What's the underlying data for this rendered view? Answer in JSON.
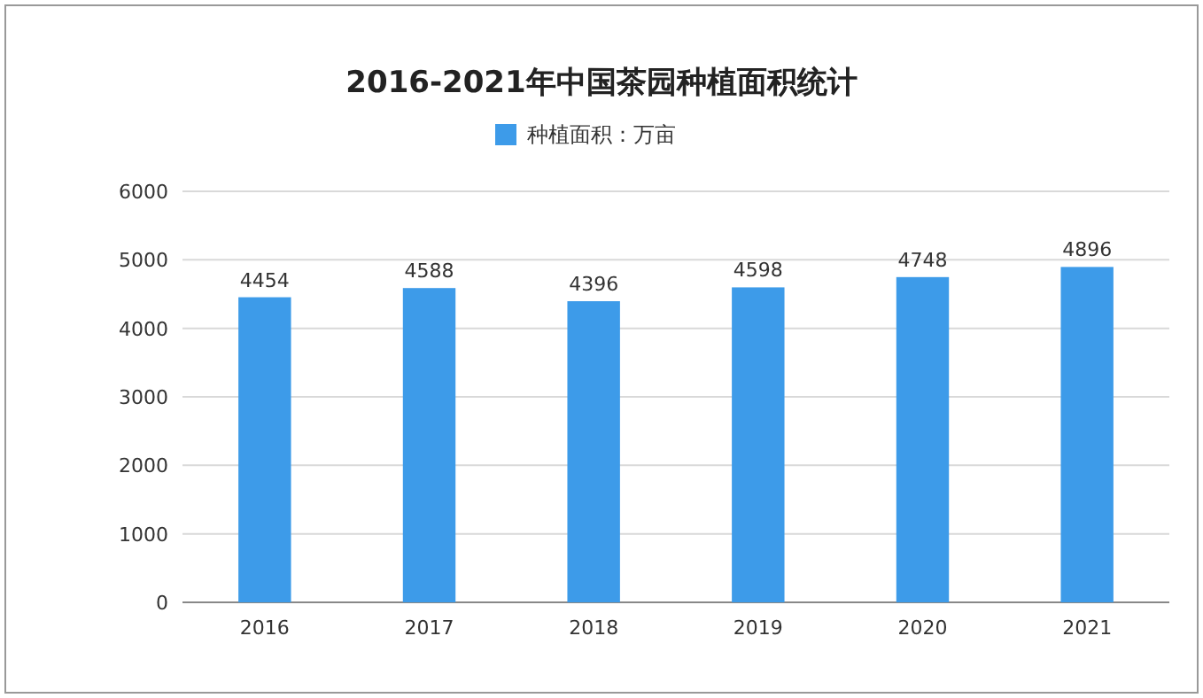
{
  "chart_data": {
    "type": "bar",
    "title": "2016-2021年中国茶园种植面积统计",
    "categories": [
      "2016",
      "2017",
      "2018",
      "2019",
      "2020",
      "2021"
    ],
    "series": [
      {
        "name": "种植面积：万亩",
        "color": "#3d9be9",
        "values": [
          4454,
          4588,
          4396,
          4598,
          4748,
          4896
        ]
      }
    ],
    "ylim": [
      0,
      6000
    ],
    "yticks": [
      0,
      1000,
      2000,
      3000,
      4000,
      5000,
      6000
    ],
    "grid": "y",
    "legend": "top",
    "data_labels": true
  }
}
